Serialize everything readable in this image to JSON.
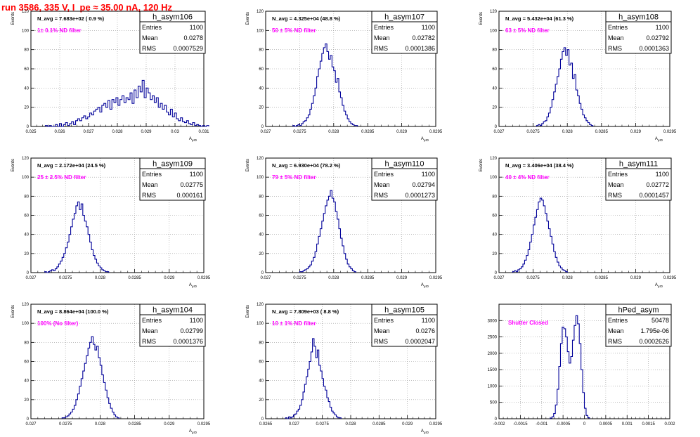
{
  "header": {
    "run_title": "run 3586,   335 V, I_pe ≈ 35.00 nA, 120 Hz"
  },
  "colors": {
    "histogram_line": "#000099",
    "annotation": "#ff00ff",
    "title": "#ff0000",
    "grid": "#999999",
    "frame": "#000000"
  },
  "chart_data": [
    {
      "type": "bar",
      "hist": "h_asym106",
      "title": "h_asym106",
      "navg": "N_avg = 7.683e+02 ( 0.9 %)",
      "filter": "1± 0.1% ND filter",
      "stats": [
        [
          "Entries",
          "1100"
        ],
        [
          "Mean",
          "0.0278"
        ],
        [
          "RMS",
          "0.0007529"
        ]
      ],
      "xlabel": "A_μID",
      "ylabel": "Events",
      "xlim": [
        0.025,
        0.031
      ],
      "ylim": [
        0,
        120
      ],
      "xticks": [
        0.025,
        0.026,
        0.027,
        0.028,
        0.029,
        0.03,
        0.031
      ],
      "xticklabels": [
        "0.025",
        "0.026",
        "0.027",
        "0.028",
        "0.029",
        "0.03",
        "0.031"
      ],
      "yticks": [
        0,
        20,
        40,
        60,
        80,
        100,
        120
      ],
      "bin_start": 0.0255,
      "bin_width": 7e-05,
      "values": [
        1,
        0,
        1,
        0,
        0,
        2,
        0,
        3,
        0,
        2,
        4,
        1,
        3,
        5,
        2,
        6,
        8,
        6,
        9,
        11,
        8,
        10,
        14,
        12,
        16,
        18,
        20,
        15,
        22,
        24,
        20,
        27,
        18,
        28,
        25,
        30,
        22,
        28,
        32,
        25,
        30,
        28,
        35,
        24,
        38,
        30,
        42,
        36,
        48,
        30,
        40,
        35,
        28,
        32,
        25,
        30,
        20,
        24,
        18,
        22,
        15,
        12,
        18,
        10,
        14,
        8,
        6,
        9,
        5,
        4,
        6,
        3,
        2,
        4,
        1,
        2,
        1,
        0,
        1,
        0,
        1
      ]
    },
    {
      "type": "bar",
      "hist": "h_asym107",
      "title": "h_asym107",
      "navg": "N_avg = 4.325e+04 (48.8 %)",
      "filter": "50 ± 5% ND filter",
      "stats": [
        [
          "Entries",
          "1100"
        ],
        [
          "Mean",
          "0.02782"
        ],
        [
          "RMS",
          "0.0001386"
        ]
      ],
      "xlabel": "A_μID",
      "ylabel": "Events",
      "xlim": [
        0.027,
        0.0295
      ],
      "ylim": [
        0,
        120
      ],
      "xticks": [
        0.027,
        0.0275,
        0.028,
        0.0285,
        0.029,
        0.0295
      ],
      "xticklabels": [
        "0.027",
        "0.0275",
        "0.028",
        "0.0285",
        "0.029",
        "0.0295"
      ],
      "yticks": [
        0,
        20,
        40,
        60,
        80,
        100,
        120
      ],
      "bin_start": 0.0274,
      "bin_width": 2.5e-05,
      "values": [
        1,
        0,
        1,
        2,
        1,
        3,
        5,
        6,
        9,
        12,
        18,
        24,
        32,
        40,
        52,
        60,
        68,
        76,
        82,
        86,
        78,
        70,
        74,
        62,
        58,
        46,
        50,
        36,
        30,
        22,
        16,
        12,
        8,
        5,
        3,
        2,
        1,
        1
      ]
    },
    {
      "type": "bar",
      "hist": "h_asym108",
      "title": "h_asym108",
      "navg": "N_avg = 5.432e+04 (61.3 %)",
      "filter": "63 ± 5% ND filter",
      "stats": [
        [
          "Entries",
          "1100"
        ],
        [
          "Mean",
          "0.02792"
        ],
        [
          "RMS",
          "0.0001363"
        ]
      ],
      "xlabel": "A_μID",
      "ylabel": "Events",
      "xlim": [
        0.027,
        0.0295
      ],
      "ylim": [
        0,
        120
      ],
      "xticks": [
        0.027,
        0.0275,
        0.028,
        0.0285,
        0.029,
        0.0295
      ],
      "xticklabels": [
        "0.027",
        "0.0275",
        "0.028",
        "0.0285",
        "0.029",
        "0.0295"
      ],
      "yticks": [
        0,
        20,
        40,
        60,
        80,
        100,
        120
      ],
      "bin_start": 0.02755,
      "bin_width": 2.5e-05,
      "values": [
        1,
        2,
        1,
        3,
        5,
        6,
        10,
        14,
        20,
        28,
        36,
        44,
        52,
        60,
        70,
        78,
        82,
        74,
        80,
        64,
        66,
        50,
        54,
        38,
        32,
        24,
        18,
        12,
        9,
        6,
        4,
        2,
        1
      ]
    },
    {
      "type": "bar",
      "hist": "h_asym109",
      "title": "h_asym109",
      "navg": "N_avg = 2.172e+04 (24.5 %)",
      "filter": "25 ± 2.5% ND filter",
      "stats": [
        [
          "Entries",
          "1100"
        ],
        [
          "Mean",
          "0.02775"
        ],
        [
          "RMS",
          "0.000161"
        ]
      ],
      "xlabel": "A_μID",
      "ylabel": "Events",
      "xlim": [
        0.027,
        0.0295
      ],
      "ylim": [
        0,
        120
      ],
      "xticks": [
        0.027,
        0.0275,
        0.028,
        0.0285,
        0.029,
        0.0295
      ],
      "xticklabels": [
        "0.027",
        "0.0275",
        "0.028",
        "0.0285",
        "0.029",
        "0.0295"
      ],
      "yticks": [
        0,
        20,
        40,
        60,
        80,
        100,
        120
      ],
      "bin_start": 0.0272,
      "bin_width": 2.5e-05,
      "values": [
        1,
        0,
        1,
        2,
        3,
        2,
        4,
        6,
        9,
        12,
        16,
        20,
        26,
        32,
        40,
        48,
        56,
        62,
        70,
        74,
        66,
        72,
        60,
        54,
        48,
        40,
        32,
        24,
        18,
        14,
        10,
        7,
        5,
        3,
        2,
        1,
        1
      ]
    },
    {
      "type": "bar",
      "hist": "h_asym110",
      "title": "h_asym110",
      "navg": "N_avg = 6.930e+04 (78.2 %)",
      "filter": "79 ± 5% ND filter",
      "stats": [
        [
          "Entries",
          "1100"
        ],
        [
          "Mean",
          "0.02794"
        ],
        [
          "RMS",
          "0.0001273"
        ]
      ],
      "xlabel": "A_μID",
      "ylabel": "Events",
      "xlim": [
        0.027,
        0.0295
      ],
      "ylim": [
        0,
        120
      ],
      "xticks": [
        0.027,
        0.0275,
        0.028,
        0.0285,
        0.029,
        0.0295
      ],
      "xticklabels": [
        "0.027",
        "0.0275",
        "0.028",
        "0.0285",
        "0.029",
        "0.0295"
      ],
      "yticks": [
        0,
        20,
        40,
        60,
        80,
        100,
        120
      ],
      "bin_start": 0.0275,
      "bin_width": 2.5e-05,
      "values": [
        1,
        1,
        2,
        3,
        4,
        6,
        8,
        12,
        16,
        22,
        30,
        38,
        46,
        54,
        62,
        70,
        76,
        80,
        86,
        78,
        74,
        64,
        56,
        46,
        36,
        28,
        20,
        14,
        9,
        6,
        4,
        2,
        1
      ]
    },
    {
      "type": "bar",
      "hist": "h_asym111",
      "title": "h_asym111",
      "navg": "N_avg = 3.406e+04 (38.4 %)",
      "filter": "40 ± 4% ND filter",
      "stats": [
        [
          "Entries",
          "1100"
        ],
        [
          "Mean",
          "0.02772"
        ],
        [
          "RMS",
          "0.0001457"
        ]
      ],
      "xlabel": "A_μID",
      "ylabel": "Events",
      "xlim": [
        0.027,
        0.0295
      ],
      "ylim": [
        0,
        120
      ],
      "xticks": [
        0.027,
        0.0275,
        0.028,
        0.0285,
        0.029,
        0.0295
      ],
      "xticklabels": [
        "0.027",
        "0.0275",
        "0.028",
        "0.0285",
        "0.029",
        "0.0295"
      ],
      "yticks": [
        0,
        20,
        40,
        60,
        80,
        100,
        120
      ],
      "bin_start": 0.0272,
      "bin_width": 2.5e-05,
      "values": [
        1,
        2,
        1,
        3,
        4,
        6,
        9,
        13,
        18,
        24,
        32,
        40,
        50,
        58,
        66,
        74,
        78,
        76,
        70,
        62,
        54,
        46,
        38,
        30,
        22,
        16,
        11,
        7,
        5,
        3,
        2,
        1
      ]
    },
    {
      "type": "bar",
      "hist": "h_asym104",
      "title": "h_asym104",
      "navg": "N_avg = 8.864e+04 (100.0 %)",
      "filter": "100% (No filter)",
      "stats": [
        [
          "Entries",
          "1100"
        ],
        [
          "Mean",
          "0.02799"
        ],
        [
          "RMS",
          "0.0001376"
        ]
      ],
      "xlabel": "A_μID",
      "ylabel": "Events",
      "xlim": [
        0.027,
        0.0295
      ],
      "ylim": [
        0,
        120
      ],
      "xticks": [
        0.027,
        0.0275,
        0.028,
        0.0285,
        0.029,
        0.0295
      ],
      "xticklabels": [
        "0.027",
        "0.0275",
        "0.028",
        "0.0285",
        "0.029",
        "0.0295"
      ],
      "yticks": [
        0,
        20,
        40,
        60,
        80,
        100,
        120
      ],
      "bin_start": 0.02745,
      "bin_width": 2.5e-05,
      "values": [
        1,
        1,
        2,
        3,
        5,
        7,
        10,
        14,
        20,
        26,
        34,
        42,
        50,
        58,
        66,
        74,
        80,
        86,
        78,
        72,
        76,
        64,
        56,
        46,
        38,
        30,
        22,
        16,
        11,
        7,
        4,
        2,
        1
      ]
    },
    {
      "type": "bar",
      "hist": "h_asym105",
      "title": "h_asym105",
      "navg": "N_avg = 7.809e+03 ( 8.8 %)",
      "filter": "10 ± 1% ND filter",
      "stats": [
        [
          "Entries",
          "1100"
        ],
        [
          "Mean",
          "0.0276"
        ],
        [
          "RMS",
          "0.0002047"
        ]
      ],
      "xlabel": "A_μID",
      "ylabel": "Events",
      "xlim": [
        0.0265,
        0.0295
      ],
      "ylim": [
        0,
        120
      ],
      "xticks": [
        0.0265,
        0.027,
        0.0275,
        0.028,
        0.0285,
        0.029,
        0.0295
      ],
      "xticklabels": [
        "0.0265",
        "0.027",
        "0.0275",
        "0.028",
        "0.0285",
        "0.029",
        "0.0295"
      ],
      "yticks": [
        0,
        20,
        40,
        60,
        80,
        100,
        120
      ],
      "bin_start": 0.02685,
      "bin_width": 2.8e-05,
      "values": [
        1,
        0,
        2,
        1,
        2,
        4,
        5,
        8,
        10,
        14,
        20,
        28,
        36,
        44,
        52,
        60,
        70,
        84,
        76,
        64,
        72,
        56,
        50,
        42,
        34,
        30,
        22,
        18,
        12,
        8,
        6,
        4,
        2,
        1,
        1
      ]
    },
    {
      "type": "bar",
      "hist": "hPed_asym",
      "title": "hPed_asym",
      "navg": "",
      "filter": "Shutter Closed",
      "stats": [
        [
          "Entries",
          "50478"
        ],
        [
          "Mean",
          "1.795e-06"
        ],
        [
          "RMS",
          "0.0002626"
        ]
      ],
      "xlabel": "",
      "ylabel": "",
      "xlim": [
        -0.002,
        0.002
      ],
      "ylim": [
        0,
        3500
      ],
      "xticks": [
        -0.002,
        -0.0015,
        -0.001,
        -0.0005,
        0,
        0.0005,
        0.001,
        0.0015,
        0.002
      ],
      "xticklabels": [
        "-0.002",
        "-0.0015",
        "-0.001",
        "-0.0005",
        "0",
        "0.0005",
        "0.001",
        "0.0015",
        "0.002"
      ],
      "yticks": [
        0,
        500,
        1000,
        1500,
        2000,
        2500,
        3000
      ],
      "bin_start": -0.0008,
      "bin_width": 4e-05,
      "values": [
        20,
        60,
        160,
        420,
        900,
        1600,
        2300,
        2800,
        2750,
        2500,
        2050,
        1700,
        1900,
        2400,
        2850,
        3150,
        2900,
        2300,
        1500,
        800,
        320,
        100,
        30
      ]
    }
  ]
}
